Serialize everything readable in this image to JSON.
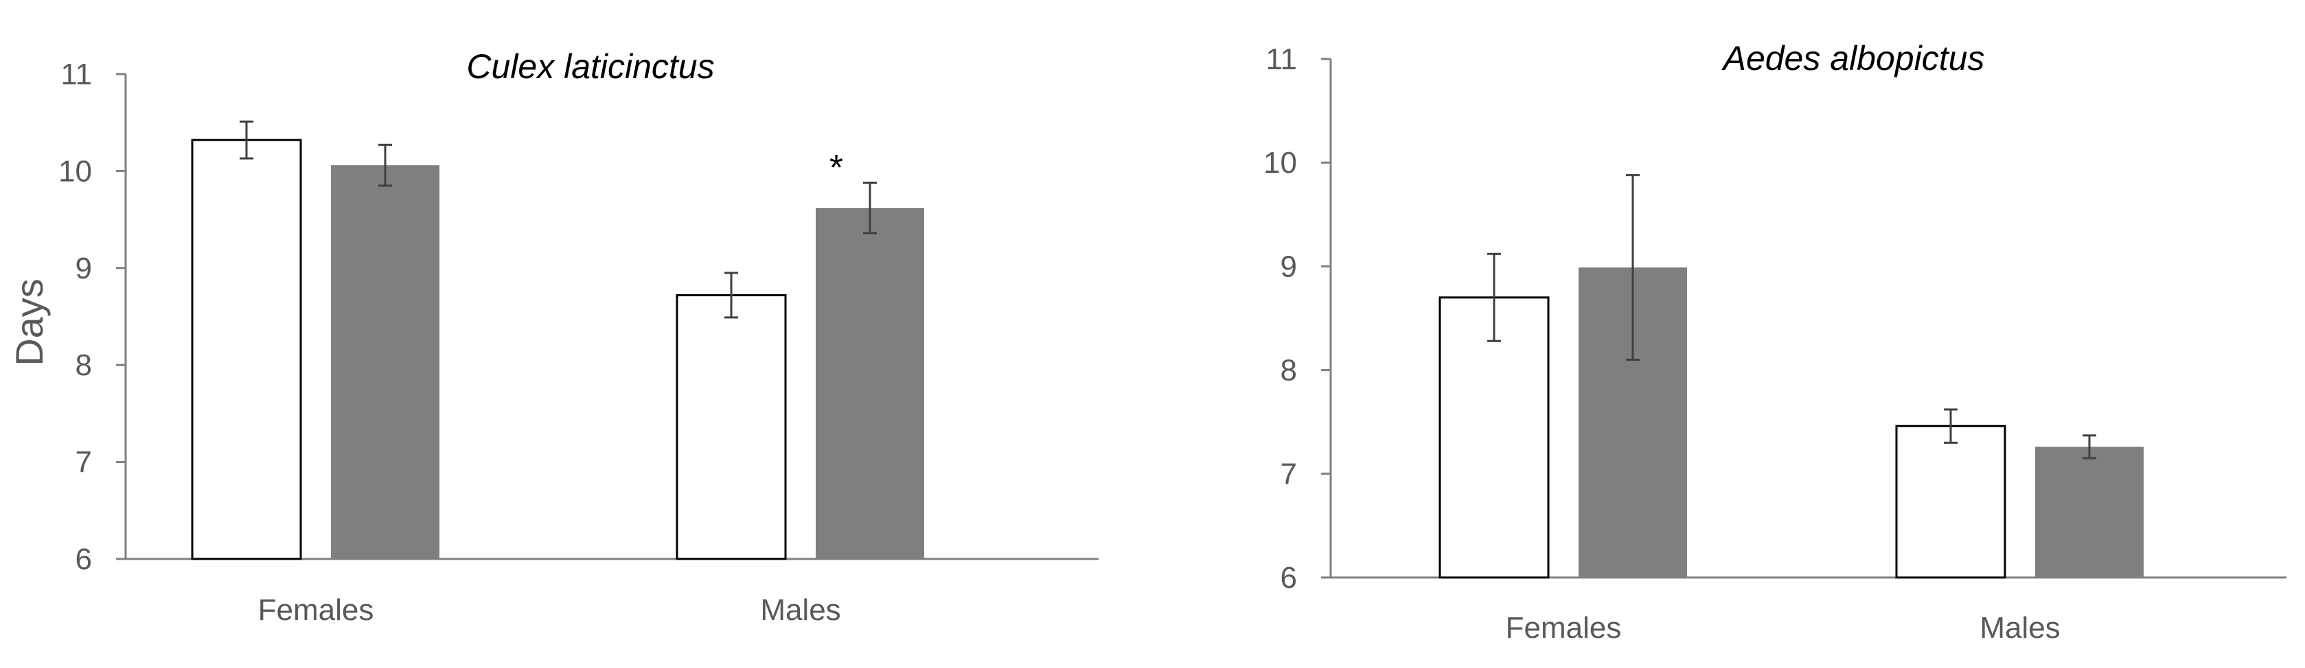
{
  "colors": {
    "axis": "#808080",
    "open_bar": "#ffffff",
    "open_stroke": "#000000",
    "filled_bar": "#7f7f7f",
    "error": "#404040"
  },
  "chart_data": [
    {
      "type": "bar",
      "title": "Culex laticinctus",
      "ylabel": "Days",
      "xlabel": "",
      "categories": [
        "Females",
        "Males"
      ],
      "ylim": [
        6,
        11
      ],
      "yticks": [
        6,
        7,
        8,
        9,
        10,
        11
      ],
      "series": [
        {
          "style": "open",
          "values": [
            10.32,
            8.72
          ],
          "errors": [
            0.19,
            0.23
          ]
        },
        {
          "style": "filled",
          "values": [
            10.06,
            9.62
          ],
          "errors": [
            0.21,
            0.26
          ]
        }
      ],
      "annotations": [
        {
          "text": "*",
          "category": "Males"
        }
      ]
    },
    {
      "type": "bar",
      "title": "Aedes albopictus",
      "ylabel": "",
      "xlabel": "",
      "categories": [
        "Females",
        "Males"
      ],
      "ylim": [
        6,
        11
      ],
      "yticks": [
        6,
        7,
        8,
        9,
        10,
        11
      ],
      "series": [
        {
          "style": "open",
          "values": [
            8.7,
            7.46
          ],
          "errors": [
            0.42,
            0.16
          ]
        },
        {
          "style": "filled",
          "values": [
            8.99,
            7.26
          ],
          "errors": [
            0.89,
            0.11
          ]
        }
      ],
      "annotations": []
    }
  ]
}
